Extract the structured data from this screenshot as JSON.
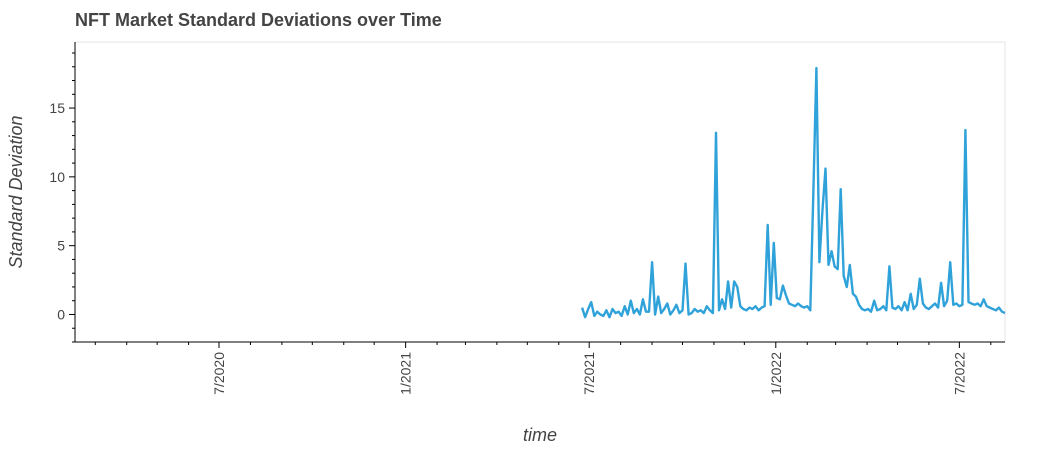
{
  "chart_data": {
    "type": "line",
    "title": "NFT Market Standard Deviations over Time",
    "xlabel": "time",
    "ylabel": "Standard Deviation",
    "x_range": [
      "2020-02-10",
      "2022-08-15"
    ],
    "ylim": [
      -2,
      19.8
    ],
    "y_ticks": [
      0,
      5,
      10,
      15
    ],
    "x_ticks": [
      {
        "date": "2020-07-01",
        "label": "7/2020"
      },
      {
        "date": "2021-01-01",
        "label": "1/2021"
      },
      {
        "date": "2021-07-01",
        "label": "7/2021"
      },
      {
        "date": "2022-01-01",
        "label": "1/2022"
      },
      {
        "date": "2022-07-01",
        "label": "7/2022"
      }
    ],
    "series": [
      {
        "name": "Standard Deviation",
        "color": "#30a2da",
        "x": [
          "2021-06-24",
          "2021-06-27",
          "2021-06-30",
          "2021-07-03",
          "2021-07-06",
          "2021-07-09",
          "2021-07-12",
          "2021-07-15",
          "2021-07-18",
          "2021-07-21",
          "2021-07-24",
          "2021-07-27",
          "2021-07-30",
          "2021-08-02",
          "2021-08-05",
          "2021-08-08",
          "2021-08-11",
          "2021-08-14",
          "2021-08-17",
          "2021-08-20",
          "2021-08-23",
          "2021-08-26",
          "2021-08-29",
          "2021-09-01",
          "2021-09-04",
          "2021-09-07",
          "2021-09-10",
          "2021-09-13",
          "2021-09-16",
          "2021-09-19",
          "2021-09-22",
          "2021-09-25",
          "2021-09-28",
          "2021-10-01",
          "2021-10-04",
          "2021-10-07",
          "2021-10-10",
          "2021-10-13",
          "2021-10-16",
          "2021-10-19",
          "2021-10-22",
          "2021-10-25",
          "2021-10-28",
          "2021-10-31",
          "2021-11-03",
          "2021-11-06",
          "2021-11-09",
          "2021-11-12",
          "2021-11-15",
          "2021-11-18",
          "2021-11-21",
          "2021-11-24",
          "2021-11-27",
          "2021-11-30",
          "2021-12-03",
          "2021-12-06",
          "2021-12-09",
          "2021-12-12",
          "2021-12-15",
          "2021-12-18",
          "2021-12-21",
          "2021-12-24",
          "2021-12-27",
          "2021-12-30",
          "2022-01-02",
          "2022-01-05",
          "2022-01-08",
          "2022-01-11",
          "2022-01-14",
          "2022-01-17",
          "2022-01-20",
          "2022-01-23",
          "2022-01-26",
          "2022-01-29",
          "2022-02-01",
          "2022-02-04",
          "2022-02-07",
          "2022-02-10",
          "2022-02-13",
          "2022-02-16",
          "2022-02-19",
          "2022-02-22",
          "2022-02-25",
          "2022-02-28",
          "2022-03-03",
          "2022-03-06",
          "2022-03-09",
          "2022-03-12",
          "2022-03-15",
          "2022-03-18",
          "2022-03-21",
          "2022-03-24",
          "2022-03-27",
          "2022-03-30",
          "2022-04-02",
          "2022-04-05",
          "2022-04-08",
          "2022-04-11",
          "2022-04-14",
          "2022-04-17",
          "2022-04-20",
          "2022-04-23",
          "2022-04-26",
          "2022-04-29",
          "2022-05-02",
          "2022-05-05",
          "2022-05-08",
          "2022-05-11",
          "2022-05-14",
          "2022-05-17",
          "2022-05-20",
          "2022-05-23",
          "2022-05-26",
          "2022-05-29",
          "2022-06-01",
          "2022-06-04",
          "2022-06-07",
          "2022-06-10",
          "2022-06-13",
          "2022-06-16",
          "2022-06-19",
          "2022-06-22",
          "2022-06-25",
          "2022-06-28",
          "2022-07-01",
          "2022-07-04",
          "2022-07-07",
          "2022-07-10",
          "2022-07-13",
          "2022-07-16",
          "2022-07-19",
          "2022-07-22",
          "2022-07-25",
          "2022-07-28",
          "2022-07-31",
          "2022-08-03",
          "2022-08-06",
          "2022-08-09",
          "2022-08-12",
          "2022-08-15"
        ],
        "values": [
          0.5,
          -0.2,
          0.4,
          0.9,
          -0.1,
          0.2,
          0.0,
          -0.1,
          0.3,
          -0.2,
          0.4,
          0.1,
          0.2,
          -0.1,
          0.6,
          0.0,
          1.0,
          0.1,
          0.4,
          0.0,
          1.1,
          0.2,
          0.2,
          3.8,
          0.0,
          1.3,
          0.1,
          0.4,
          0.8,
          0.0,
          0.3,
          0.7,
          0.1,
          0.3,
          3.7,
          0.0,
          0.1,
          0.4,
          0.2,
          0.3,
          0.1,
          0.6,
          0.3,
          0.1,
          13.2,
          0.3,
          1.1,
          0.4,
          2.4,
          0.5,
          2.4,
          2.0,
          0.6,
          0.4,
          0.3,
          0.5,
          0.4,
          0.6,
          0.3,
          0.5,
          0.6,
          6.5,
          0.7,
          5.2,
          1.2,
          1.1,
          2.1,
          1.4,
          0.8,
          0.7,
          0.6,
          0.8,
          0.6,
          0.5,
          0.6,
          0.3,
          8.7,
          17.9,
          3.8,
          7.5,
          10.6,
          3.6,
          4.6,
          3.5,
          3.3,
          9.1,
          2.8,
          2.0,
          3.6,
          1.5,
          1.3,
          0.7,
          0.4,
          0.3,
          0.4,
          0.2,
          1.0,
          0.3,
          0.4,
          0.6,
          0.3,
          3.5,
          0.5,
          0.4,
          0.6,
          0.3,
          0.9,
          0.3,
          1.5,
          0.4,
          0.7,
          2.6,
          0.8,
          0.5,
          0.4,
          0.6,
          0.8,
          0.5,
          2.3,
          0.6,
          1.0,
          3.8,
          0.7,
          0.8,
          0.6,
          0.7,
          13.4,
          0.9,
          0.8,
          0.7,
          0.8,
          0.6,
          1.1,
          0.6,
          0.5,
          0.4,
          0.3,
          0.5,
          0.2,
          0.1
        ]
      }
    ]
  }
}
